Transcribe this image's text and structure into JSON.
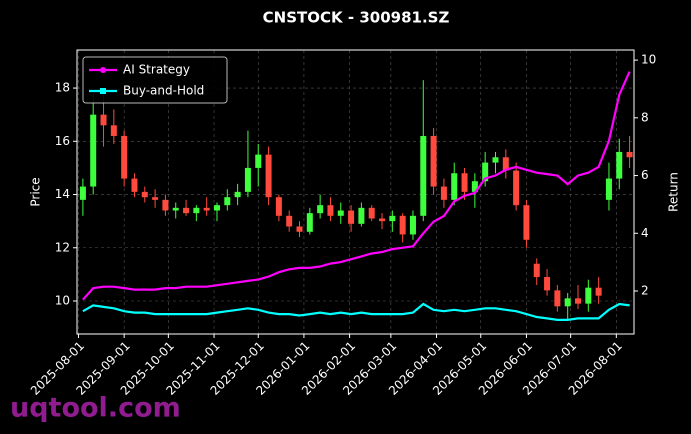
{
  "chart_data": {
    "type": "candlestick",
    "title": "CNSTOCK - 300981.SZ",
    "ylabel": "Price",
    "y2label": "Return",
    "watermark": "uqtool.com",
    "up_color": "#3dff3d",
    "down_color": "#ff4a3d",
    "grid": true,
    "legend": "upper left",
    "xlim": [
      "2025-07-31",
      "2026-08-13"
    ],
    "xticks": [
      "2025-08-01",
      "2025-09-01",
      "2025-10-01",
      "2025-11-01",
      "2025-12-01",
      "2026-01-01",
      "2026-02-01",
      "2026-03-01",
      "2026-04-01",
      "2026-05-01",
      "2026-06-01",
      "2026-07-01",
      "2026-08-01"
    ],
    "ylim": [
      8.76,
      19.43
    ],
    "yticks": [
      10,
      12,
      14,
      16,
      18
    ],
    "y2lim": [
      0.51,
      10.35
    ],
    "y2ticks": [
      2,
      4,
      6,
      8,
      10
    ],
    "x": [
      "2025-08-04",
      "2025-08-11",
      "2025-08-18",
      "2025-08-25",
      "2025-09-01",
      "2025-09-08",
      "2025-09-15",
      "2025-09-22",
      "2025-09-29",
      "2025-10-06",
      "2025-10-13",
      "2025-10-20",
      "2025-10-27",
      "2025-11-03",
      "2025-11-10",
      "2025-11-17",
      "2025-11-24",
      "2025-12-01",
      "2025-12-08",
      "2025-12-15",
      "2025-12-22",
      "2025-12-29",
      "2026-01-05",
      "2026-01-12",
      "2026-01-19",
      "2026-01-26",
      "2026-02-02",
      "2026-02-09",
      "2026-02-16",
      "2026-02-23",
      "2026-03-02",
      "2026-03-09",
      "2026-03-16",
      "2026-03-23",
      "2026-03-30",
      "2026-04-06",
      "2026-04-13",
      "2026-04-20",
      "2026-04-27",
      "2026-05-04",
      "2026-05-11",
      "2026-05-18",
      "2026-05-25",
      "2026-06-01",
      "2026-06-08",
      "2026-06-15",
      "2026-06-22",
      "2026-06-29",
      "2026-07-06",
      "2026-07-13",
      "2026-07-20",
      "2026-07-27",
      "2026-08-03",
      "2026-08-10"
    ],
    "open": [
      13.8,
      14.3,
      17.0,
      16.6,
      16.2,
      14.6,
      14.1,
      13.9,
      13.8,
      13.4,
      13.5,
      13.3,
      13.5,
      13.4,
      13.6,
      13.9,
      14.1,
      15.0,
      15.5,
      13.9,
      13.2,
      12.8,
      12.6,
      13.3,
      13.6,
      13.2,
      13.4,
      12.9,
      13.5,
      13.1,
      13.0,
      13.2,
      12.5,
      13.2,
      16.2,
      14.3,
      13.8,
      14.8,
      14.1,
      14.5,
      15.2,
      15.4,
      14.9,
      13.6,
      11.4,
      10.9,
      10.4,
      9.8,
      10.1,
      9.9,
      10.5,
      13.8,
      14.6,
      15.6
    ],
    "high": [
      14.6,
      17.8,
      17.9,
      17.2,
      16.4,
      14.8,
      14.3,
      14.2,
      14.0,
      13.7,
      13.8,
      13.6,
      13.9,
      13.7,
      14.2,
      14.4,
      16.4,
      15.9,
      15.8,
      14.0,
      13.4,
      13.0,
      13.5,
      14.0,
      13.9,
      13.7,
      13.6,
      13.7,
      13.6,
      13.3,
      13.4,
      13.3,
      13.4,
      18.3,
      16.5,
      14.6,
      15.2,
      15.0,
      14.8,
      15.6,
      15.6,
      15.7,
      15.2,
      13.8,
      11.6,
      11.2,
      10.6,
      10.3,
      10.6,
      10.8,
      10.9,
      15.2,
      16.1,
      16.2
    ],
    "low": [
      13.2,
      14.0,
      15.8,
      15.9,
      14.3,
      13.9,
      13.7,
      13.5,
      13.2,
      13.1,
      13.2,
      13.0,
      13.2,
      13.0,
      13.4,
      13.6,
      13.9,
      14.3,
      13.6,
      13.0,
      12.6,
      12.4,
      12.5,
      13.1,
      13.0,
      12.9,
      12.6,
      12.8,
      13.0,
      12.7,
      12.6,
      12.2,
      12.3,
      13.0,
      14.0,
      13.5,
      13.6,
      13.8,
      13.5,
      14.3,
      14.8,
      14.6,
      13.4,
      12.0,
      10.6,
      10.2,
      9.6,
      9.3,
      9.7,
      9.6,
      9.9,
      13.4,
      14.2,
      15.0
    ],
    "close": [
      14.3,
      17.0,
      16.6,
      16.2,
      14.6,
      14.1,
      13.9,
      13.8,
      13.4,
      13.5,
      13.3,
      13.5,
      13.4,
      13.6,
      13.9,
      14.1,
      15.0,
      15.5,
      13.9,
      13.2,
      12.8,
      12.6,
      13.3,
      13.6,
      13.2,
      13.4,
      12.9,
      13.5,
      13.1,
      13.0,
      13.2,
      12.5,
      13.2,
      16.2,
      14.3,
      13.8,
      14.8,
      14.1,
      14.5,
      15.2,
      15.4,
      14.9,
      13.6,
      12.3,
      10.9,
      10.4,
      9.8,
      10.1,
      9.9,
      10.5,
      10.2,
      14.6,
      15.6,
      15.4
    ],
    "series": [
      {
        "name": "AI Strategy",
        "color": "#ff00ff",
        "marker": "circle",
        "axis": "y2",
        "values": [
          1.7,
          2.1,
          2.15,
          2.15,
          2.1,
          2.05,
          2.05,
          2.05,
          2.1,
          2.1,
          2.15,
          2.15,
          2.15,
          2.2,
          2.25,
          2.3,
          2.35,
          2.4,
          2.5,
          2.65,
          2.75,
          2.8,
          2.8,
          2.85,
          2.95,
          3.0,
          3.1,
          3.2,
          3.3,
          3.35,
          3.45,
          3.5,
          3.55,
          4.0,
          4.4,
          4.6,
          5.1,
          5.3,
          5.4,
          5.9,
          6.0,
          6.2,
          6.3,
          6.2,
          6.1,
          6.05,
          6.0,
          5.7,
          6.0,
          6.1,
          6.3,
          7.2,
          8.8,
          9.6
        ]
      },
      {
        "name": "Buy-and-Hold",
        "color": "#00ffff",
        "marker": "square",
        "axis": "y2",
        "values": [
          1.3,
          1.5,
          1.45,
          1.4,
          1.3,
          1.25,
          1.25,
          1.2,
          1.2,
          1.2,
          1.2,
          1.2,
          1.2,
          1.25,
          1.3,
          1.35,
          1.4,
          1.35,
          1.25,
          1.2,
          1.2,
          1.15,
          1.2,
          1.25,
          1.2,
          1.25,
          1.2,
          1.25,
          1.2,
          1.2,
          1.2,
          1.2,
          1.25,
          1.55,
          1.35,
          1.3,
          1.35,
          1.3,
          1.35,
          1.4,
          1.4,
          1.35,
          1.3,
          1.2,
          1.1,
          1.05,
          1.0,
          1.0,
          1.05,
          1.05,
          1.05,
          1.35,
          1.55,
          1.5
        ]
      }
    ]
  }
}
